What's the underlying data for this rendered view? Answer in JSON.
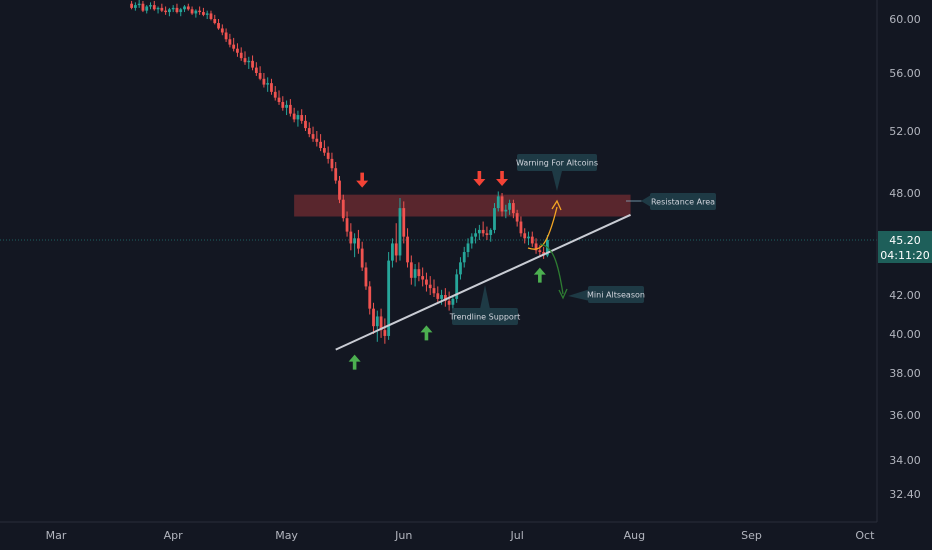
{
  "chart_data": {
    "type": "candlestick",
    "y_axis": {
      "ticks": [
        "60.00",
        "56.00",
        "52.00",
        "48.00",
        "45.20",
        "42.00",
        "40.00",
        "38.00",
        "36.00",
        "34.00",
        "32.40"
      ],
      "range": [
        31.6,
        61.8
      ],
      "position": "right"
    },
    "x_axis": {
      "ticks": [
        "Mar",
        "Apr",
        "May",
        "Jun",
        "Jul",
        "Aug",
        "Sep",
        "Oct"
      ]
    },
    "grid": false,
    "last_price": {
      "value": "45.20",
      "countdown": "04:11:20"
    },
    "colors": {
      "up": "#26a69a",
      "down": "#ef5350",
      "background": "#131722",
      "resistance_zone": "#6b2a31",
      "trendline": "#c9ccd4",
      "arrow_up": "#4caf50",
      "arrow_down": "#f44336",
      "projection_up": "#f5a623",
      "projection_down": "#2e7d32",
      "price_line": "#26a69a"
    },
    "resistance_zone": {
      "from": 46.6,
      "to": 47.9
    },
    "trendline": {
      "start": {
        "date": "2021-05-14",
        "price": 39.2
      },
      "end": {
        "date": "2021-07-31",
        "price": 46.7
      }
    },
    "annotations": [
      {
        "text": "Resistance Area"
      },
      {
        "text": "Warning For Altcoins"
      },
      {
        "text": "Trendline Support"
      },
      {
        "text": "Mini Altseason"
      }
    ],
    "markers": [
      {
        "type": "down-arrow",
        "date": "2021-05-21",
        "price": 47.9
      },
      {
        "type": "down-arrow",
        "date": "2021-06-21",
        "price": 48.0
      },
      {
        "type": "down-arrow",
        "date": "2021-06-27",
        "price": 48.0
      },
      {
        "type": "up-arrow",
        "date": "2021-05-19",
        "price": 39.3
      },
      {
        "type": "up-arrow",
        "date": "2021-06-07",
        "price": 40.8
      },
      {
        "type": "up-arrow",
        "date": "2021-07-07",
        "price": 44.0
      }
    ],
    "candles": [
      [
        61.1,
        61.3,
        60.7,
        60.8
      ],
      [
        60.8,
        61.2,
        60.6,
        61.0
      ],
      [
        61.0,
        61.4,
        60.8,
        61.1
      ],
      [
        61.1,
        61.3,
        60.5,
        60.6
      ],
      [
        60.6,
        61.0,
        60.4,
        60.9
      ],
      [
        60.9,
        61.2,
        60.7,
        61.0
      ],
      [
        61.0,
        61.3,
        60.6,
        60.7
      ],
      [
        60.7,
        60.9,
        60.4,
        60.8
      ],
      [
        60.8,
        61.1,
        60.5,
        60.6
      ],
      [
        60.6,
        60.9,
        60.3,
        60.5
      ],
      [
        60.5,
        60.8,
        60.2,
        60.7
      ],
      [
        60.7,
        61.0,
        60.5,
        60.8
      ],
      [
        60.8,
        61.1,
        60.4,
        60.5
      ],
      [
        60.5,
        60.8,
        60.2,
        60.7
      ],
      [
        60.7,
        61.0,
        60.5,
        60.9
      ],
      [
        60.9,
        61.1,
        60.6,
        60.7
      ],
      [
        60.7,
        60.9,
        60.3,
        60.4
      ],
      [
        60.4,
        60.7,
        60.1,
        60.6
      ],
      [
        60.6,
        60.9,
        60.3,
        60.5
      ],
      [
        60.5,
        60.8,
        60.2,
        60.3
      ],
      [
        60.3,
        60.6,
        60.0,
        60.4
      ],
      [
        60.4,
        60.6,
        59.9,
        60.0
      ],
      [
        60.0,
        60.3,
        59.6,
        59.7
      ],
      [
        59.7,
        60.0,
        59.2,
        59.3
      ],
      [
        59.3,
        59.6,
        58.8,
        59.0
      ],
      [
        59.0,
        59.3,
        58.3,
        58.5
      ],
      [
        58.5,
        58.9,
        57.9,
        58.1
      ],
      [
        58.1,
        58.6,
        57.6,
        57.8
      ],
      [
        57.8,
        58.2,
        57.2,
        57.5
      ],
      [
        57.5,
        57.9,
        56.9,
        57.1
      ],
      [
        57.1,
        57.6,
        56.6,
        56.8
      ],
      [
        56.8,
        57.2,
        56.3,
        56.9
      ],
      [
        56.9,
        57.3,
        56.2,
        56.4
      ],
      [
        56.4,
        56.8,
        55.8,
        56.0
      ],
      [
        56.0,
        56.5,
        55.5,
        55.6
      ],
      [
        55.6,
        56.0,
        55.0,
        55.2
      ],
      [
        55.2,
        55.7,
        54.7,
        55.3
      ],
      [
        55.3,
        55.6,
        54.5,
        54.7
      ],
      [
        54.7,
        55.1,
        54.1,
        54.3
      ],
      [
        54.3,
        54.8,
        53.8,
        54.0
      ],
      [
        54.0,
        54.4,
        53.4,
        53.6
      ],
      [
        53.6,
        54.1,
        53.1,
        53.8
      ],
      [
        53.8,
        54.2,
        53.0,
        53.2
      ],
      [
        53.2,
        53.6,
        52.6,
        52.8
      ],
      [
        52.8,
        53.4,
        52.3,
        53.1
      ],
      [
        53.1,
        53.5,
        52.5,
        52.7
      ],
      [
        52.7,
        53.1,
        52.0,
        52.2
      ],
      [
        52.2,
        52.6,
        51.6,
        51.8
      ],
      [
        51.8,
        52.3,
        51.3,
        51.5
      ],
      [
        51.5,
        52.0,
        51.0,
        51.3
      ],
      [
        51.3,
        51.8,
        50.7,
        50.9
      ],
      [
        50.9,
        51.4,
        50.4,
        50.6
      ],
      [
        50.6,
        51.0,
        49.9,
        50.2
      ],
      [
        50.2,
        50.6,
        49.4,
        49.6
      ],
      [
        49.6,
        50.0,
        48.6,
        48.8
      ],
      [
        48.8,
        49.1,
        47.4,
        47.6
      ],
      [
        47.6,
        47.9,
        46.3,
        46.5
      ],
      [
        46.5,
        46.9,
        45.4,
        45.7
      ],
      [
        45.7,
        46.2,
        44.6,
        45.0
      ],
      [
        45.0,
        45.6,
        44.2,
        45.3
      ],
      [
        45.3,
        45.8,
        44.4,
        44.7
      ],
      [
        44.7,
        45.1,
        43.4,
        43.6
      ],
      [
        43.6,
        43.9,
        42.3,
        42.5
      ],
      [
        42.5,
        42.8,
        41.0,
        41.3
      ],
      [
        41.3,
        41.6,
        40.0,
        40.4
      ],
      [
        40.4,
        41.2,
        39.6,
        40.9
      ],
      [
        40.9,
        41.3,
        39.8,
        40.2
      ],
      [
        40.2,
        40.8,
        39.5,
        39.9
      ],
      [
        39.9,
        44.5,
        39.7,
        44.0
      ],
      [
        44.0,
        45.3,
        43.6,
        45.0
      ],
      [
        45.0,
        46.2,
        43.9,
        44.3
      ],
      [
        44.3,
        47.7,
        44.0,
        47.1
      ],
      [
        47.1,
        47.5,
        45.0,
        45.4
      ],
      [
        45.4,
        45.9,
        43.6,
        43.9
      ],
      [
        43.9,
        44.3,
        42.6,
        43.0
      ],
      [
        43.0,
        43.8,
        42.5,
        43.5
      ],
      [
        43.5,
        43.9,
        42.8,
        43.1
      ],
      [
        43.1,
        43.6,
        42.5,
        42.9
      ],
      [
        42.9,
        43.3,
        42.2,
        42.6
      ],
      [
        42.6,
        43.1,
        42.0,
        42.4
      ],
      [
        42.4,
        42.9,
        41.9,
        42.1
      ],
      [
        42.1,
        42.5,
        41.6,
        41.8
      ],
      [
        41.8,
        42.3,
        41.5,
        42.0
      ],
      [
        42.0,
        42.4,
        41.4,
        41.7
      ],
      [
        41.7,
        42.2,
        41.2,
        41.5
      ],
      [
        41.5,
        42.0,
        41.1,
        41.8
      ],
      [
        41.8,
        43.5,
        41.6,
        43.2
      ],
      [
        43.2,
        44.2,
        42.9,
        43.9
      ],
      [
        43.9,
        44.8,
        43.6,
        44.5
      ],
      [
        44.5,
        45.3,
        44.2,
        45.0
      ],
      [
        45.0,
        45.6,
        44.7,
        45.4
      ],
      [
        45.4,
        45.9,
        45.0,
        45.6
      ],
      [
        45.6,
        46.1,
        45.2,
        45.8
      ],
      [
        45.8,
        46.3,
        45.4,
        45.6
      ],
      [
        45.6,
        46.0,
        45.2,
        45.5
      ],
      [
        45.5,
        45.9,
        45.1,
        45.8
      ],
      [
        45.8,
        47.4,
        45.6,
        47.1
      ],
      [
        47.1,
        48.1,
        46.9,
        47.8
      ],
      [
        47.8,
        48.0,
        46.6,
        46.9
      ],
      [
        46.9,
        47.3,
        46.5,
        47.0
      ],
      [
        47.0,
        47.6,
        46.7,
        47.4
      ],
      [
        47.4,
        47.6,
        46.5,
        46.8
      ],
      [
        46.8,
        47.0,
        46.0,
        46.3
      ],
      [
        46.3,
        46.6,
        45.4,
        45.6
      ],
      [
        45.6,
        45.9,
        45.0,
        45.3
      ],
      [
        45.3,
        45.7,
        44.9,
        45.4
      ],
      [
        45.4,
        45.7,
        44.8,
        45.0
      ],
      [
        45.0,
        45.3,
        44.4,
        44.6
      ],
      [
        44.6,
        44.9,
        44.2,
        44.5
      ],
      [
        44.5,
        44.8,
        44.1,
        44.3
      ],
      [
        44.3,
        45.5,
        44.2,
        45.2
      ]
    ]
  }
}
